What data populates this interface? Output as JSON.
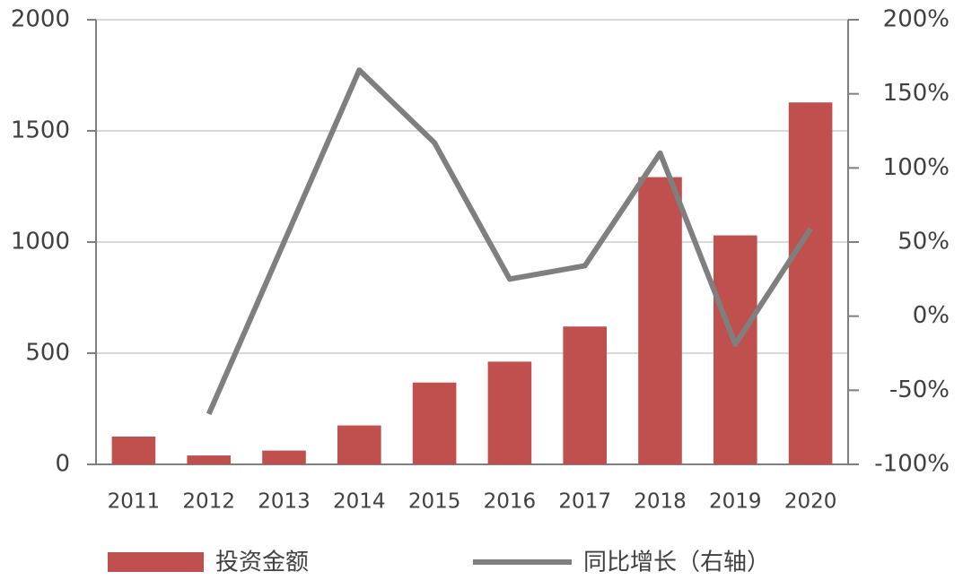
{
  "chart_data": {
    "type": "bar-line",
    "categories": [
      "2011",
      "2012",
      "2013",
      "2014",
      "2015",
      "2016",
      "2017",
      "2018",
      "2019",
      "2020"
    ],
    "series": [
      {
        "name": "投资金额",
        "type": "bar",
        "color": "#c0504d",
        "values": [
          125,
          40,
          62,
          175,
          368,
          462,
          620,
          1292,
          1030,
          1628
        ]
      },
      {
        "name": "同比增长（右轴）",
        "type": "line",
        "axis": "y2",
        "color": "#7f7f7f",
        "values": [
          null,
          -66,
          50,
          166,
          117,
          25,
          34,
          110,
          -19,
          59
        ]
      }
    ],
    "ylim": [
      0,
      2000
    ],
    "yticks": [
      0,
      500,
      1000,
      1500,
      2000
    ],
    "y2lim": [
      -100,
      200
    ],
    "y2ticks": [
      {
        "value": -100,
        "label": "-100%"
      },
      {
        "value": -50,
        "label": "-50%"
      },
      {
        "value": 0,
        "label": "0%"
      },
      {
        "value": 50,
        "label": "50%"
      },
      {
        "value": 100,
        "label": "100%"
      },
      {
        "value": 150,
        "label": "150%"
      },
      {
        "value": 200,
        "label": "200%"
      }
    ],
    "grid": true,
    "legend": "bottom"
  }
}
